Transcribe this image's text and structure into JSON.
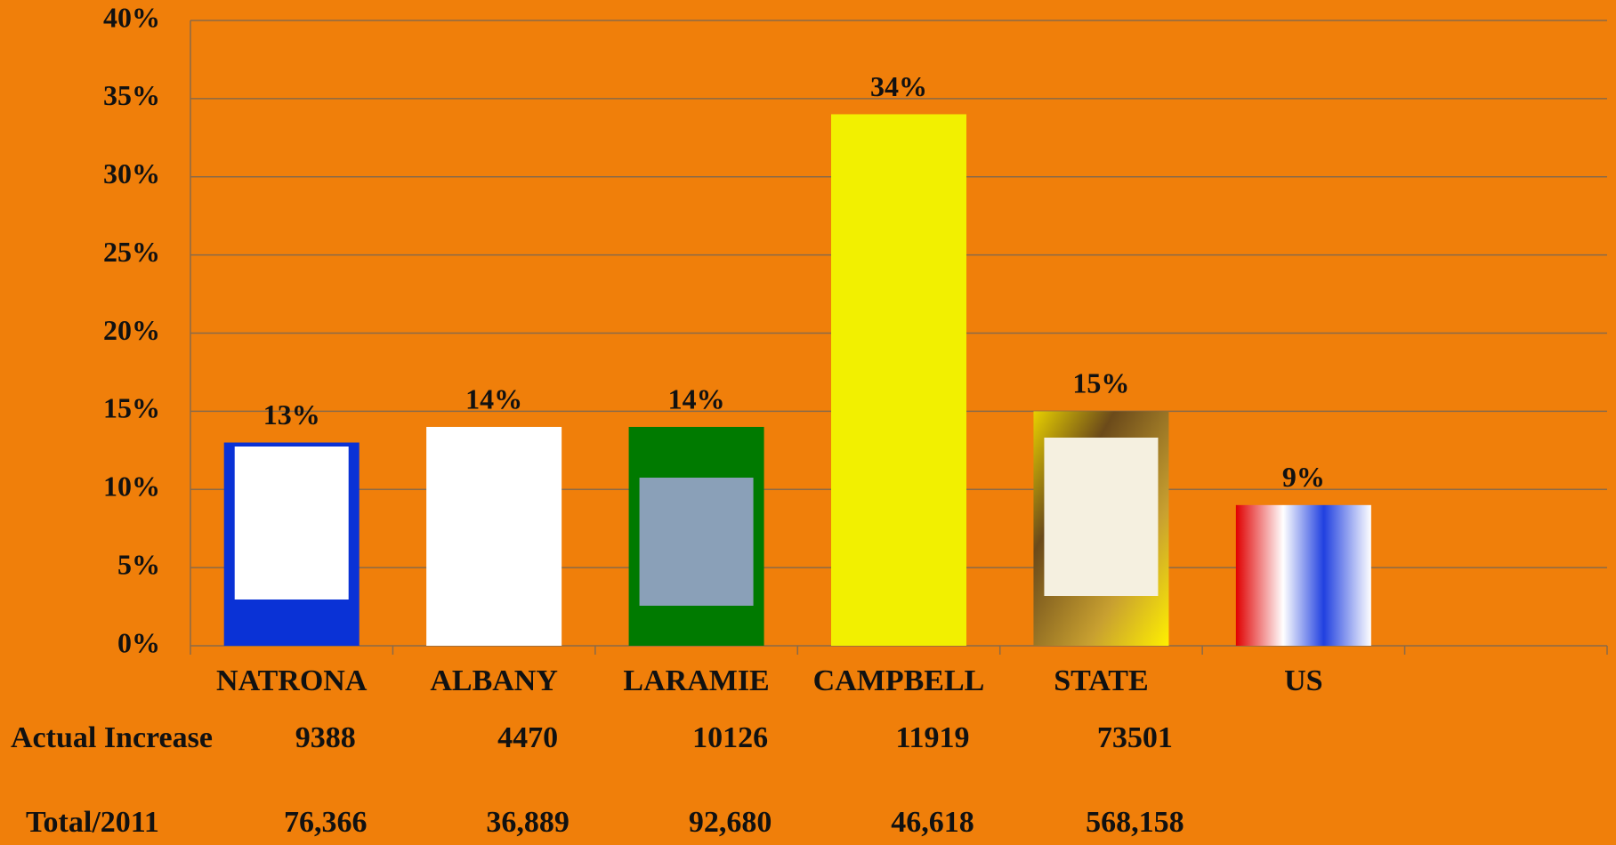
{
  "chart_data": {
    "type": "bar",
    "categories": [
      "NATRONA",
      "ALBANY",
      "LARAMIE",
      "CAMPBELL",
      "STATE",
      "US"
    ],
    "values": [
      13,
      14,
      14,
      34,
      15,
      9
    ],
    "value_labels": [
      "13%",
      "14%",
      "14%",
      "34%",
      "15%",
      "9%"
    ],
    "colors": [
      "#0a32d6",
      "#ffffff",
      "#007a00",
      "#f2f000",
      "#b8900a",
      "#d0d0e8"
    ],
    "ylim": [
      0,
      40
    ],
    "yticks": [
      {
        "value": 0,
        "label": "0%"
      },
      {
        "value": 5,
        "label": "5%"
      },
      {
        "value": 10,
        "label": "10%"
      },
      {
        "value": 15,
        "label": "15%"
      },
      {
        "value": 20,
        "label": "20%"
      },
      {
        "value": 25,
        "label": "25%"
      },
      {
        "value": 30,
        "label": "30%"
      },
      {
        "value": 35,
        "label": "35%"
      },
      {
        "value": 40,
        "label": "40%"
      }
    ],
    "grid": true,
    "rows": [
      {
        "label": "Actual Increase",
        "values": [
          9388,
          4470,
          10126,
          11919,
          73501
        ]
      },
      {
        "label": "Total/2011",
        "values": [
          "76,366",
          "36,889",
          "92,680",
          "46,618",
          "568,158"
        ]
      }
    ]
  }
}
